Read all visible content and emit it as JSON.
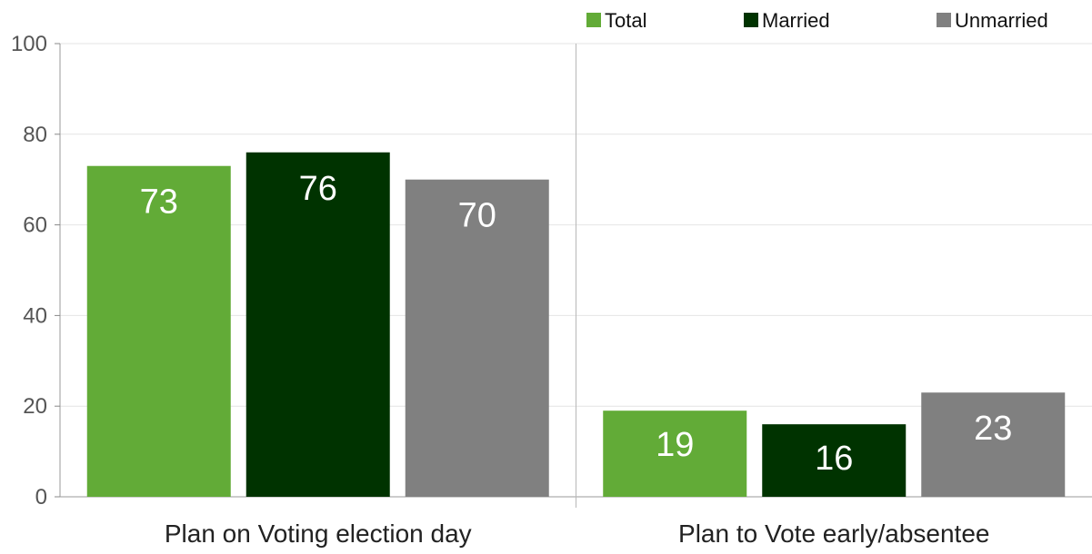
{
  "chart_data": {
    "type": "bar",
    "title": "",
    "xlabel": "",
    "ylabel": "",
    "categories": [
      "Plan on Voting election day",
      "Plan to Vote early/absentee"
    ],
    "series": [
      {
        "name": "Total",
        "color": "#62ab37",
        "values": [
          73,
          19
        ]
      },
      {
        "name": "Married",
        "color": "#003300",
        "values": [
          76,
          16
        ]
      },
      {
        "name": "Unmarried",
        "color": "#808080",
        "values": [
          70,
          23
        ]
      }
    ],
    "ylim": [
      0,
      100
    ],
    "yticks": [
      0,
      20,
      40,
      60,
      80,
      100
    ],
    "grid": true,
    "legend": "top-right"
  }
}
